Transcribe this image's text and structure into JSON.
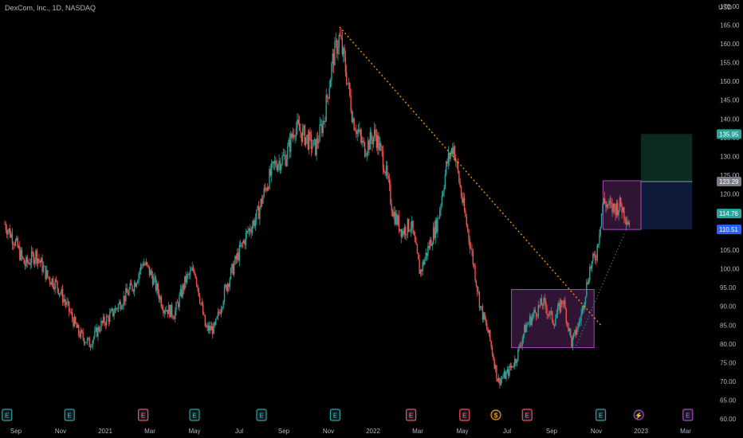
{
  "header": {
    "title": "DexCom, Inc., 1D, NASDAQ",
    "currency": "USD"
  },
  "colors": {
    "up": "#26a69a",
    "down": "#ef5350",
    "background": "#000000",
    "trendline": "#ff9800",
    "box": "#ab47bc",
    "target_zone": "#0b2a21",
    "stop_zone": "#0d1a3a",
    "earnings_up": "#26a69a",
    "earnings_down": "#ef5350",
    "dividend": "#ff9800",
    "split": "#ab47bc"
  },
  "chart_data": {
    "type": "candlestick",
    "ylim": [
      60,
      170
    ],
    "y_ticks": [
      60,
      65,
      70,
      75,
      80,
      85,
      90,
      95,
      100,
      105,
      110,
      115,
      120,
      125,
      130,
      135,
      140,
      145,
      150,
      155,
      160,
      165,
      170
    ],
    "x_range_months": [
      0,
      30.5
    ],
    "x_ticks": [
      {
        "label": "Sep",
        "m": 0.5
      },
      {
        "label": "Nov",
        "m": 2.5
      },
      {
        "label": "2021",
        "m": 4.5
      },
      {
        "label": "Mar",
        "m": 6.5
      },
      {
        "label": "May",
        "m": 8.5
      },
      {
        "label": "Jul",
        "m": 10.5
      },
      {
        "label": "Sep",
        "m": 12.5
      },
      {
        "label": "Nov",
        "m": 14.5
      },
      {
        "label": "2022",
        "m": 16.5
      },
      {
        "label": "Mar",
        "m": 18.5
      },
      {
        "label": "May",
        "m": 20.5
      },
      {
        "label": "Jul",
        "m": 22.5
      },
      {
        "label": "Sep",
        "m": 24.5
      },
      {
        "label": "Nov",
        "m": 26.5
      },
      {
        "label": "2023",
        "m": 28.5
      },
      {
        "label": "Mar",
        "m": 30.5
      }
    ],
    "price_path": [
      [
        0,
        112
      ],
      [
        0.4,
        108
      ],
      [
        0.9,
        101
      ],
      [
        1.4,
        104
      ],
      [
        1.9,
        98
      ],
      [
        2.3,
        96
      ],
      [
        2.8,
        90
      ],
      [
        3.3,
        83
      ],
      [
        3.8,
        80
      ],
      [
        4.3,
        85
      ],
      [
        4.8,
        88
      ],
      [
        5.3,
        92
      ],
      [
        5.8,
        96
      ],
      [
        6.2,
        102
      ],
      [
        6.6,
        98
      ],
      [
        7.1,
        90
      ],
      [
        7.6,
        88
      ],
      [
        8.1,
        97
      ],
      [
        8.5,
        100
      ],
      [
        9.0,
        84
      ],
      [
        9.4,
        84
      ],
      [
        9.9,
        95
      ],
      [
        10.4,
        103
      ],
      [
        10.9,
        110
      ],
      [
        11.3,
        114
      ],
      [
        11.7,
        122
      ],
      [
        12.1,
        128
      ],
      [
        12.6,
        130
      ],
      [
        13.0,
        138
      ],
      [
        13.5,
        135
      ],
      [
        13.9,
        132
      ],
      [
        14.3,
        140
      ],
      [
        14.7,
        156
      ],
      [
        15.0,
        162
      ],
      [
        15.3,
        152
      ],
      [
        15.6,
        140
      ],
      [
        16.1,
        132
      ],
      [
        16.6,
        136
      ],
      [
        17.0,
        128
      ],
      [
        17.4,
        115
      ],
      [
        17.8,
        110
      ],
      [
        18.2,
        112
      ],
      [
        18.6,
        99
      ],
      [
        19.0,
        106
      ],
      [
        19.4,
        113
      ],
      [
        19.8,
        128
      ],
      [
        20.1,
        133
      ],
      [
        20.5,
        118
      ],
      [
        20.9,
        105
      ],
      [
        21.3,
        90
      ],
      [
        21.7,
        82
      ],
      [
        22.1,
        70
      ],
      [
        22.5,
        72
      ],
      [
        22.9,
        76
      ],
      [
        23.3,
        84
      ],
      [
        23.7,
        88
      ],
      [
        24.1,
        91
      ],
      [
        24.6,
        86
      ],
      [
        25.0,
        92
      ],
      [
        25.4,
        80
      ],
      [
        25.8,
        87
      ],
      [
        26.2,
        100
      ],
      [
        26.5,
        104
      ],
      [
        26.8,
        118
      ],
      [
        27.2,
        116
      ],
      [
        27.6,
        117
      ],
      [
        28.0,
        112
      ]
    ],
    "trendline": {
      "from": [
        15.0,
        164.5
      ],
      "to": [
        26.7,
        85
      ]
    },
    "dotted_line": {
      "from": [
        25.6,
        79.5
      ],
      "to": [
        27.8,
        110
      ]
    },
    "boxes": [
      {
        "m0": 22.7,
        "m1": 26.4,
        "y0": 79,
        "y1": 94.5
      },
      {
        "m0": 26.8,
        "m1": 28.5,
        "y0": 110.5,
        "y1": 123.5
      }
    ],
    "position": {
      "m0": 28.5,
      "m1": 30.8,
      "target_top": 135.95,
      "entry": 123.29,
      "stop_bottom": 110.51
    },
    "price_tags": [
      {
        "label": "135.95",
        "value": 135.95,
        "color": "#26a69a"
      },
      {
        "label": "123.29",
        "value": 123.29,
        "color": "#787b86"
      },
      {
        "label": "114.76",
        "value": 114.76,
        "color": "#26a69a"
      },
      {
        "label": "110.51",
        "value": 110.51,
        "color": "#2962ff"
      }
    ],
    "events": [
      {
        "type": "earnings",
        "glyph": "E",
        "m": 0.1,
        "color": "#26a69a"
      },
      {
        "type": "earnings",
        "glyph": "E",
        "m": 2.9,
        "color": "#26a69a"
      },
      {
        "type": "earnings",
        "glyph": "E",
        "m": 6.2,
        "color": "#ef5350"
      },
      {
        "type": "earnings",
        "glyph": "E",
        "m": 8.5,
        "color": "#26a69a"
      },
      {
        "type": "earnings",
        "glyph": "E",
        "m": 11.5,
        "color": "#26a69a"
      },
      {
        "type": "earnings",
        "glyph": "E",
        "m": 14.8,
        "color": "#26a69a"
      },
      {
        "type": "earnings",
        "glyph": "E",
        "m": 18.2,
        "color": "#ef5350"
      },
      {
        "type": "earnings",
        "glyph": "E",
        "m": 20.6,
        "color": "#ef5350"
      },
      {
        "type": "dividend",
        "glyph": "$",
        "m": 22.0,
        "color": "#ff9800"
      },
      {
        "type": "earnings",
        "glyph": "E",
        "m": 23.4,
        "color": "#ef5350"
      },
      {
        "type": "earnings",
        "glyph": "E",
        "m": 26.7,
        "color": "#26a69a"
      },
      {
        "type": "split",
        "glyph": "⚡",
        "m": 28.4,
        "color": "#ab47bc"
      },
      {
        "type": "earnings",
        "glyph": "E",
        "m": 30.6,
        "color": "#ab47bc"
      }
    ]
  }
}
